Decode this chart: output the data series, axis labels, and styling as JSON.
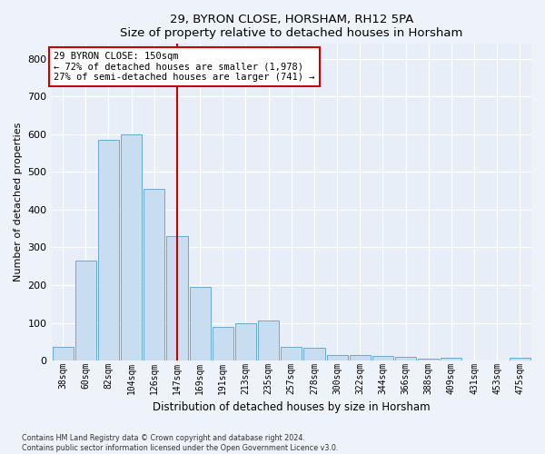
{
  "title1": "29, BYRON CLOSE, HORSHAM, RH12 5PA",
  "title2": "Size of property relative to detached houses in Horsham",
  "xlabel": "Distribution of detached houses by size in Horsham",
  "ylabel": "Number of detached properties",
  "categories": [
    "38sqm",
    "60sqm",
    "82sqm",
    "104sqm",
    "126sqm",
    "147sqm",
    "169sqm",
    "191sqm",
    "213sqm",
    "235sqm",
    "257sqm",
    "278sqm",
    "300sqm",
    "322sqm",
    "344sqm",
    "366sqm",
    "388sqm",
    "409sqm",
    "431sqm",
    "453sqm",
    "475sqm"
  ],
  "values": [
    35,
    265,
    585,
    600,
    455,
    330,
    195,
    90,
    100,
    105,
    35,
    33,
    15,
    15,
    12,
    10,
    5,
    8,
    0,
    0,
    8
  ],
  "bar_color": "#c9ddf0",
  "bar_edge_color": "#6aaad4",
  "vline_x": 5.0,
  "vline_color": "#cc0000",
  "annotation_text": "29 BYRON CLOSE: 150sqm\n← 72% of detached houses are smaller (1,978)\n27% of semi-detached houses are larger (741) →",
  "annotation_box_color": "#ffffff",
  "annotation_box_edge": "#cc0000",
  "ylim": [
    0,
    840
  ],
  "yticks": [
    0,
    100,
    200,
    300,
    400,
    500,
    600,
    700,
    800
  ],
  "footer1": "Contains HM Land Registry data © Crown copyright and database right 2024.",
  "footer2": "Contains public sector information licensed under the Open Government Licence v3.0.",
  "bg_color": "#eef2f9",
  "plot_bg_color": "#e8eef8"
}
